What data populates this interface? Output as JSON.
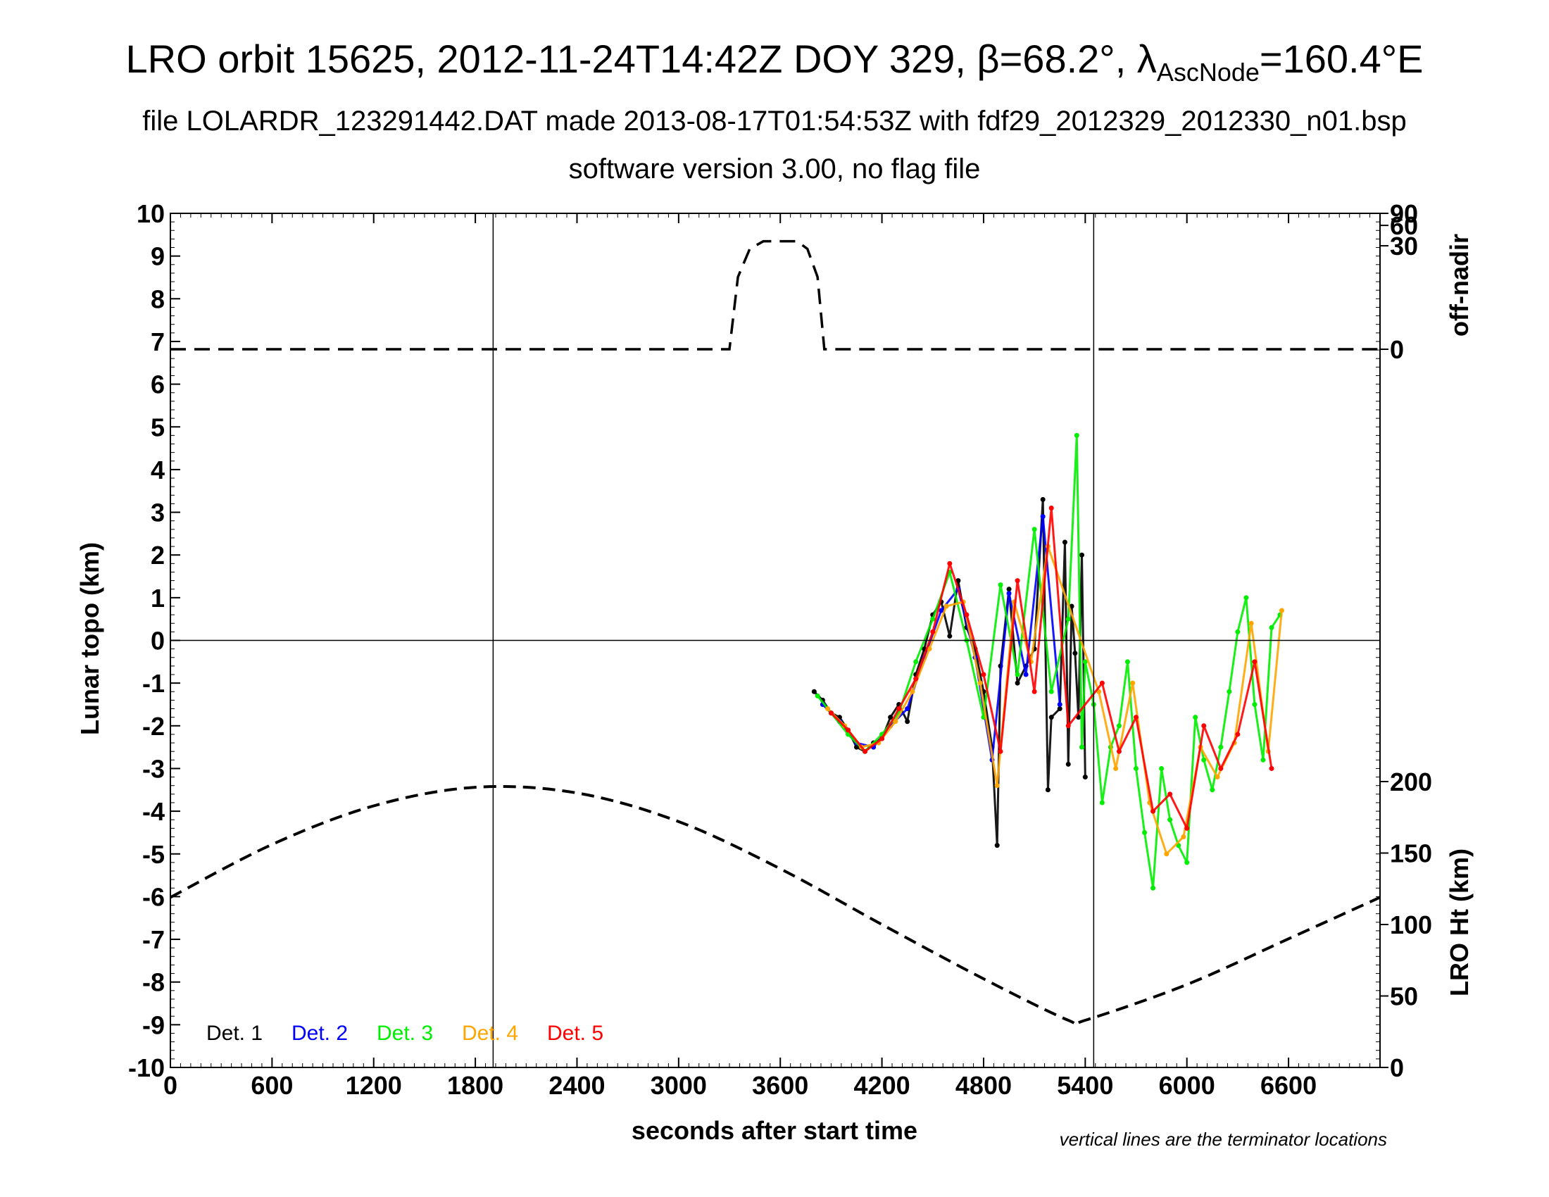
{
  "title": {
    "main": "LRO orbit 15625, 2012-11-24T14:42Z DOY 329, β=68.2°, λ",
    "sub": "AscNode",
    "tail": "=160.4°E"
  },
  "subtitle": "file LOLARDR_123291442.DAT made 2013-08-17T01:54:53Z with fdf29_2012329_2012330_n01.bsp",
  "subtitle2": "software version 3.00, no flag file",
  "note": "vertical lines are the terminator locations",
  "colors": {
    "det1": "#000000",
    "det2": "#0000ff",
    "det3": "#00ee00",
    "det4": "#ffa500",
    "det5": "#ff0000",
    "frame": "#000000"
  },
  "chart_data": {
    "type": "scatter",
    "xlabel": "seconds after start time",
    "ylabel_left": "Lunar topo (km)",
    "ylabel_right_top": "off-nadir",
    "ylabel_right_bottom": "LRO Ht (km)",
    "xlim": [
      0,
      7140
    ],
    "ylim": [
      -10,
      10
    ],
    "x_ticks": [
      0,
      600,
      1200,
      1800,
      2400,
      3000,
      3600,
      4200,
      4800,
      5400,
      6000,
      6600
    ],
    "y_ticks": [
      -10,
      -9,
      -8,
      -7,
      -6,
      -5,
      -4,
      -3,
      -2,
      -1,
      0,
      1,
      2,
      3,
      4,
      5,
      6,
      7,
      8,
      9,
      10
    ],
    "off_nadir_ticks": [
      0,
      30,
      60,
      90
    ],
    "lro_ht_ticks": [
      0,
      50,
      100,
      150,
      200
    ],
    "terminator_lines_x": [
      1905,
      5450
    ],
    "grid": "zero line and terminator lines only",
    "legend": [
      "Det. 1",
      "Det. 2",
      "Det. 3",
      "Det. 4",
      "Det. 5"
    ],
    "legend_position": "bottom-left",
    "off_nadir_series": {
      "x": [
        0,
        3300,
        3350,
        3420,
        3500,
        3700,
        3760,
        3820,
        3860,
        7140
      ],
      "y_deg": [
        0,
        0,
        10,
        27,
        35,
        35,
        27,
        10,
        0,
        0
      ]
    },
    "lro_height_series": {
      "x": [
        0,
        600,
        1200,
        1800,
        2400,
        3000,
        3600,
        4200,
        4800,
        5300,
        5400,
        6000,
        6600,
        7140
      ],
      "y_km": [
        119,
        156,
        183,
        196,
        192,
        172,
        139,
        100,
        62,
        33,
        33,
        58,
        90,
        119
      ]
    },
    "topo_series": [
      {
        "name": "Det. 1",
        "x": [
          3800,
          3850,
          3900,
          3950,
          4000,
          4050,
          4100,
          4150,
          4200,
          4250,
          4300,
          4350,
          4400,
          4450,
          4500,
          4550,
          4600,
          4650,
          4700,
          4750,
          4800,
          4850,
          4880,
          4900,
          4950,
          5000,
          5050,
          5100,
          5150,
          5180,
          5200,
          5250,
          5280,
          5300,
          5320,
          5340,
          5360,
          5380,
          5400
        ],
        "y": [
          -1.2,
          -1.4,
          -1.7,
          -1.8,
          -2.1,
          -2.5,
          -2.6,
          -2.4,
          -2.3,
          -1.8,
          -1.5,
          -1.9,
          -0.8,
          -0.2,
          0.6,
          0.9,
          0.1,
          1.4,
          0.3,
          -0.2,
          -1.2,
          -2.5,
          -4.8,
          -0.6,
          1.2,
          -1.0,
          -0.6,
          -0.2,
          3.3,
          -3.5,
          -1.8,
          -1.6,
          2.3,
          -2.9,
          0.8,
          -0.3,
          -1.8,
          2.0,
          -3.2
        ]
      },
      {
        "name": "Det. 2",
        "x": [
          3850,
          3950,
          4050,
          4150,
          4250,
          4350,
          4450,
          4550,
          4650,
          4750,
          4850,
          4950,
          5050,
          5150,
          5250
        ],
        "y": [
          -1.5,
          -1.9,
          -2.4,
          -2.5,
          -2.0,
          -1.6,
          -0.4,
          0.7,
          1.2,
          -0.4,
          -2.8,
          1.1,
          -0.8,
          2.9,
          -1.5
        ]
      },
      {
        "name": "Det. 3",
        "x": [
          3820,
          3900,
          4000,
          4100,
          4200,
          4300,
          4400,
          4500,
          4600,
          4700,
          4800,
          4900,
          5000,
          5100,
          5200,
          5300,
          5350,
          5380,
          5400,
          5450,
          5500,
          5550,
          5600,
          5650,
          5700,
          5750,
          5800,
          5850,
          5900,
          5950,
          6000,
          6050,
          6100,
          6150,
          6200,
          6250,
          6300,
          6350,
          6400,
          6450,
          6500,
          6550
        ],
        "y": [
          -1.3,
          -1.7,
          -2.2,
          -2.6,
          -2.2,
          -1.7,
          -0.5,
          0.5,
          1.6,
          0.0,
          -1.8,
          1.3,
          -0.8,
          2.6,
          -1.2,
          0.5,
          4.8,
          -2.5,
          -0.5,
          -1.5,
          -3.8,
          -2.5,
          -2.0,
          -0.5,
          -3.0,
          -4.5,
          -5.8,
          -3.0,
          -4.2,
          -4.8,
          -5.2,
          -1.8,
          -2.8,
          -3.5,
          -2.5,
          -1.2,
          0.2,
          1.0,
          -1.5,
          -2.8,
          0.3,
          0.6
        ]
      },
      {
        "name": "Det. 4",
        "x": [
          3880,
          3980,
          4080,
          4180,
          4280,
          4380,
          4480,
          4580,
          4680,
          4780,
          4880,
          4980,
          5080,
          5180,
          5480,
          5580,
          5680,
          5780,
          5880,
          5980,
          6080,
          6180,
          6280,
          6380,
          6480,
          6560
        ],
        "y": [
          -1.6,
          -2.0,
          -2.5,
          -2.4,
          -1.9,
          -1.2,
          -0.2,
          0.8,
          0.9,
          -1.0,
          -3.4,
          0.9,
          -0.5,
          2.2,
          -1.2,
          -3.0,
          -1.0,
          -3.8,
          -5.0,
          -4.6,
          -2.5,
          -3.2,
          -2.4,
          0.4,
          -2.6,
          0.7
        ]
      },
      {
        "name": "Det. 5",
        "x": [
          3900,
          4000,
          4100,
          4200,
          4300,
          4400,
          4500,
          4600,
          4700,
          4800,
          4900,
          5000,
          5100,
          5200,
          5300,
          5500,
          5600,
          5700,
          5800,
          5900,
          6000,
          6100,
          6200,
          6300,
          6400,
          6500
        ],
        "y": [
          -1.7,
          -2.1,
          -2.6,
          -2.3,
          -1.6,
          -0.9,
          0.2,
          1.8,
          0.6,
          -0.8,
          -2.6,
          1.4,
          -1.2,
          3.1,
          -2.0,
          -1.0,
          -2.6,
          -1.8,
          -4.0,
          -3.6,
          -4.4,
          -2.0,
          -3.0,
          -2.2,
          -0.5,
          -3.0
        ]
      }
    ]
  }
}
